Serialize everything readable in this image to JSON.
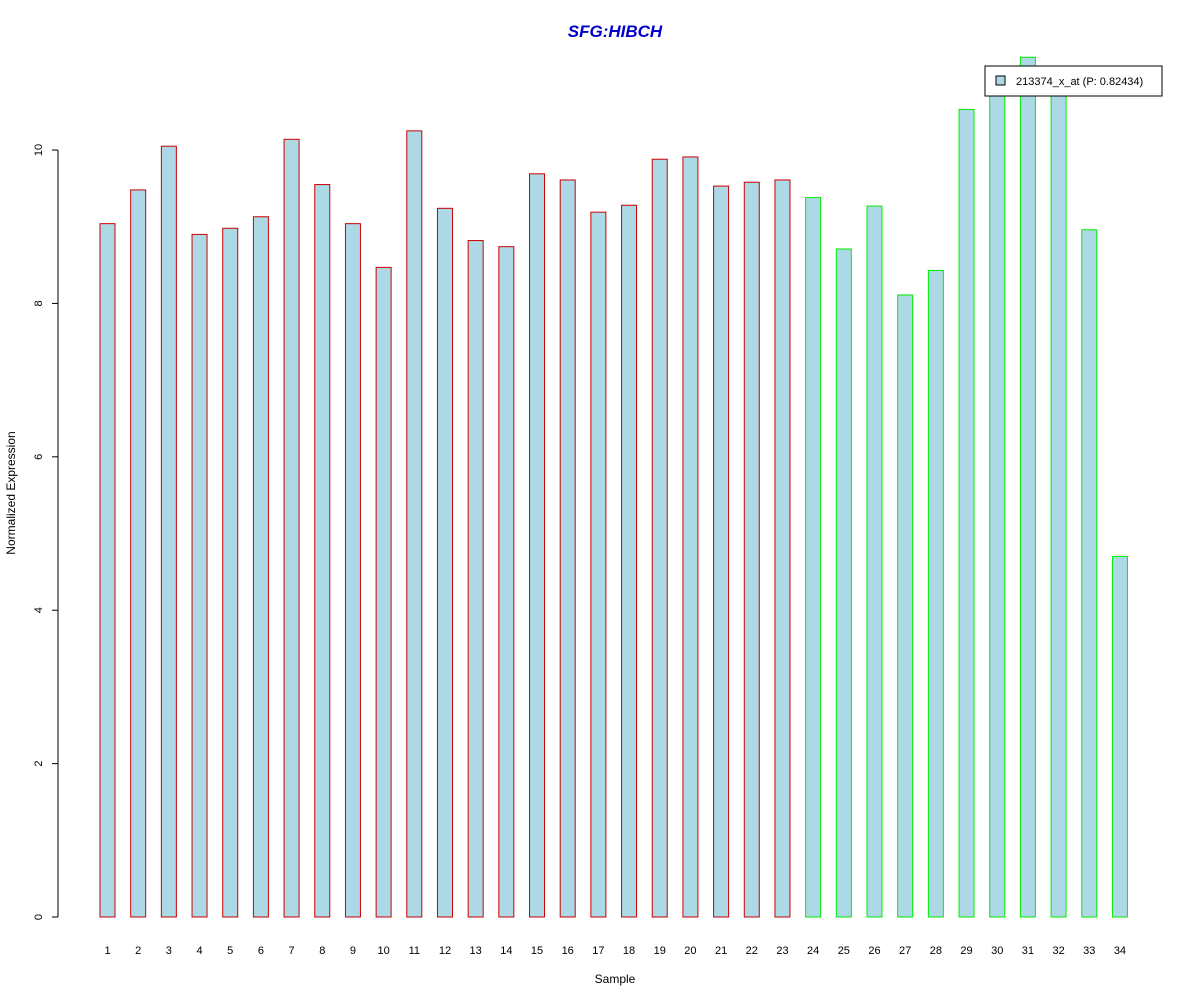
{
  "chart_data": {
    "type": "bar",
    "title": "SFG:HIBCH",
    "xlabel": "Sample",
    "ylabel": "Normalized Expression",
    "ylim": [
      0,
      11.2
    ],
    "yticks": [
      "0",
      "2",
      "4",
      "6",
      "8",
      "10"
    ],
    "categories": [
      "1",
      "2",
      "3",
      "4",
      "5",
      "6",
      "7",
      "8",
      "9",
      "10",
      "11",
      "12",
      "13",
      "14",
      "15",
      "16",
      "17",
      "18",
      "19",
      "20",
      "21",
      "22",
      "23",
      "24",
      "25",
      "26",
      "27",
      "28",
      "29",
      "30",
      "31",
      "32",
      "33",
      "34"
    ],
    "values": [
      9.04,
      9.48,
      10.05,
      8.9,
      8.98,
      9.13,
      10.14,
      9.55,
      9.04,
      8.47,
      10.25,
      9.24,
      8.82,
      8.74,
      9.69,
      9.61,
      9.19,
      9.28,
      9.88,
      9.91,
      9.53,
      9.58,
      9.61,
      9.38,
      8.71,
      9.27,
      8.11,
      8.43,
      10.53,
      10.97,
      11.21,
      11.05,
      8.96,
      4.7
    ],
    "bar_fill": "#add8e6",
    "group_border_colors": [
      "#cc0000",
      "#cc0000",
      "#cc0000",
      "#cc0000",
      "#cc0000",
      "#cc0000",
      "#cc0000",
      "#cc0000",
      "#cc0000",
      "#cc0000",
      "#cc0000",
      "#cc0000",
      "#cc0000",
      "#cc0000",
      "#cc0000",
      "#cc0000",
      "#cc0000",
      "#cc0000",
      "#cc0000",
      "#cc0000",
      "#cc0000",
      "#cc0000",
      "#cc0000",
      "#00ee00",
      "#00ee00",
      "#00ee00",
      "#00ee00",
      "#00ee00",
      "#00ee00",
      "#00ee00",
      "#00ee00",
      "#00ee00",
      "#00ee00",
      "#00ee00"
    ],
    "title_color": "#0000cc",
    "legend": {
      "label": "213374_x_at (P: 0.82434)",
      "position": "top-right",
      "swatch_color": "#add8e6"
    },
    "grid": false
  }
}
